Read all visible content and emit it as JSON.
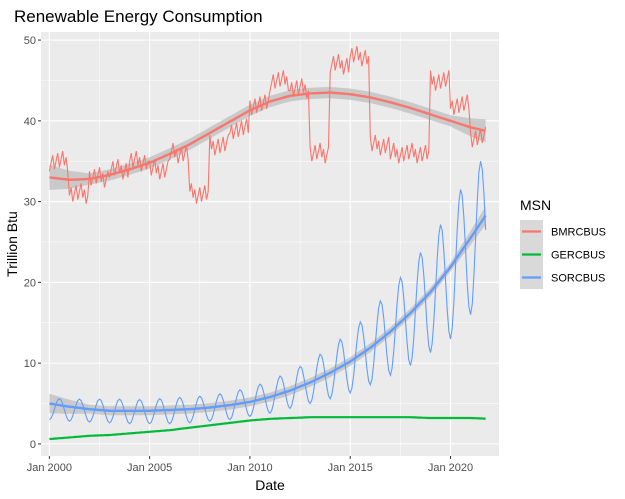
{
  "chart_data": {
    "type": "line",
    "title": "Renewable Energy Consumption",
    "xlabel": "Date",
    "ylabel": "Trillion Btu",
    "xlim": [
      "1999-08",
      "2022-06"
    ],
    "ylim": [
      -1.5,
      51
    ],
    "x_ticks": [
      "2000-01",
      "2005-01",
      "2010-01",
      "2015-01",
      "2020-01"
    ],
    "x_tick_labels": [
      "Jan 2000",
      "Jan 2005",
      "Jan 2010",
      "Jan 2015",
      "Jan 2020"
    ],
    "y_ticks": [
      0,
      10,
      20,
      30,
      40,
      50
    ],
    "y_tick_labels": [
      "0",
      "10",
      "20",
      "30",
      "40",
      "50"
    ],
    "grid": true,
    "legend": {
      "title": "MSN",
      "position": "right"
    },
    "colors": {
      "BMRCBUS": "#F8766D",
      "GERCBUS": "#00BA38",
      "SORCBUS": "#619CFF",
      "panel": "#EBEBEB",
      "grid": "#FFFFFF",
      "band": "#BEBEBE"
    },
    "series": [
      {
        "name": "BMRCBUS",
        "period": "yearly",
        "values": [
          35,
          31,
          33,
          34,
          35,
          34,
          36,
          31,
          37,
          39,
          42,
          45,
          44,
          36,
          47,
          48,
          37,
          36,
          36,
          45,
          42,
          38,
          38
        ],
        "smooth": [
          33,
          32.7,
          32.8,
          33.3,
          34.0,
          34.8,
          35.9,
          37.1,
          38.5,
          39.9,
          41.3,
          42.4,
          43.1,
          43.4,
          43.5,
          43.3,
          42.9,
          42.3,
          41.6,
          40.8,
          40.0,
          39.2,
          38.6
        ]
      },
      {
        "name": "GERCBUS",
        "period": "yearly",
        "values": [
          0.6,
          0.8,
          1.0,
          1.1,
          1.3,
          1.5,
          1.7,
          2.0,
          2.3,
          2.6,
          2.9,
          3.1,
          3.2,
          3.3,
          3.3,
          3.3,
          3.3,
          3.3,
          3.3,
          3.2,
          3.2,
          3.2,
          3.1
        ],
        "smooth": []
      },
      {
        "name": "SORCBUS",
        "period": "yearly",
        "seasonal": true,
        "amplitude": [
          1.3,
          1.4,
          1.4,
          1.5,
          1.5,
          1.5,
          1.6,
          1.6,
          1.6,
          1.7,
          1.8,
          2.0,
          2.3,
          2.6,
          3.2,
          3.8,
          4.5,
          5.3,
          6.2,
          7.0,
          8.0,
          9.0,
          9.0
        ],
        "values": [
          4.3,
          4.2,
          4.1,
          4.1,
          4.0,
          4.0,
          4.1,
          4.2,
          4.4,
          4.7,
          5.2,
          5.8,
          6.7,
          7.6,
          8.8,
          10.1,
          11.8,
          13.8,
          15.9,
          18.3,
          21.0,
          25.0,
          27.0
        ],
        "smooth": [
          5.0,
          4.6,
          4.3,
          4.1,
          4.1,
          4.1,
          4.2,
          4.3,
          4.5,
          4.8,
          5.2,
          5.8,
          6.6,
          7.6,
          8.8,
          10.2,
          11.9,
          13.9,
          16.2,
          18.8,
          21.9,
          25.5,
          29.2
        ]
      }
    ]
  }
}
